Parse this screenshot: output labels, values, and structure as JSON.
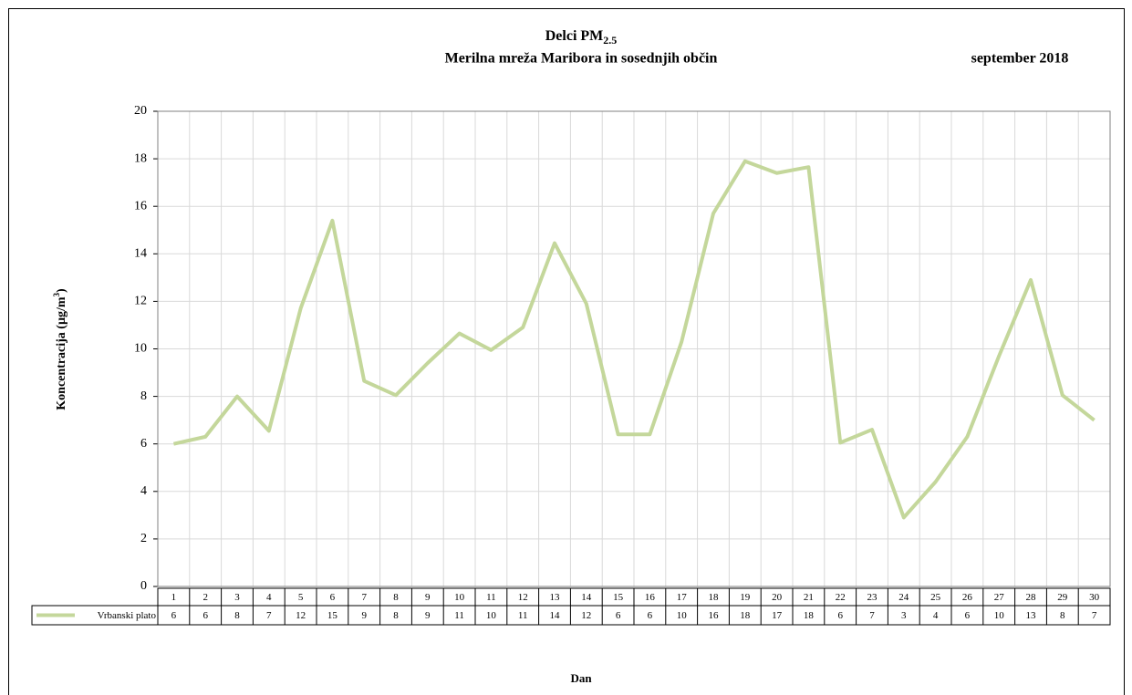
{
  "chart_data": {
    "type": "line",
    "title": {
      "text": "Delci PM",
      "subscript": "2.5"
    },
    "subtitle": "Merilna mreža Maribora in sosednjih občin",
    "date": "september 2018",
    "y_label": {
      "text": "Koncentracija  (µg/m",
      "superscript": "3",
      "suffix": ")"
    },
    "x_label": "Dan",
    "categories": [
      "1",
      "2",
      "3",
      "4",
      "5",
      "6",
      "7",
      "8",
      "9",
      "10",
      "11",
      "12",
      "13",
      "14",
      "15",
      "16",
      "17",
      "18",
      "19",
      "20",
      "21",
      "22",
      "23",
      "24",
      "25",
      "26",
      "27",
      "28",
      "29",
      "30"
    ],
    "series": [
      {
        "name": "Vrbanski plato",
        "color": "#c4d79b",
        "values": [
          6.0,
          6.3,
          8.0,
          6.55,
          11.7,
          15.4,
          8.65,
          8.05,
          9.4,
          10.65,
          9.95,
          10.9,
          14.45,
          11.9,
          6.4,
          6.4,
          10.3,
          15.7,
          17.9,
          17.4,
          17.65,
          6.05,
          6.6,
          2.9,
          4.4,
          6.3,
          9.7,
          12.9,
          8.05,
          7.0
        ],
        "value_labels": [
          "6",
          "6",
          "8",
          "7",
          "12",
          "15",
          "9",
          "8",
          "9",
          "11",
          "10",
          "11",
          "14",
          "12",
          "6",
          "6",
          "10",
          "16",
          "18",
          "17",
          "18",
          "6",
          "7",
          "3",
          "4",
          "6",
          "10",
          "13",
          "8",
          "7"
        ]
      }
    ],
    "ylim": [
      0,
      20
    ],
    "yticks": [
      0,
      2,
      4,
      6,
      8,
      10,
      12,
      14,
      16,
      18,
      20
    ],
    "grid": true
  }
}
